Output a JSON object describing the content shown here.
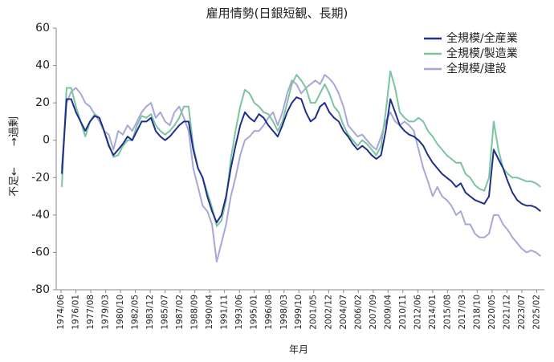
{
  "chart_data": {
    "type": "line",
    "title": "雇用情勢(日銀短観、長期)",
    "x_label": "年月",
    "y_label": "不足←　　→過剰",
    "xlim": [
      1973.9,
      2025.9
    ],
    "xticks": [
      {
        "value": 1974.42,
        "label": "1974/06"
      },
      {
        "value": 1976.0,
        "label": "1976/01"
      },
      {
        "value": 1977.58,
        "label": "1977/08"
      },
      {
        "value": 1979.17,
        "label": "1979/03"
      },
      {
        "value": 1980.75,
        "label": "1980/10"
      },
      {
        "value": 1982.33,
        "label": "1982/05"
      },
      {
        "value": 1983.92,
        "label": "1983/12"
      },
      {
        "value": 1985.5,
        "label": "1985/07"
      },
      {
        "value": 1987.08,
        "label": "1987/02"
      },
      {
        "value": 1988.67,
        "label": "1988/09"
      },
      {
        "value": 1990.25,
        "label": "1990/04"
      },
      {
        "value": 1991.83,
        "label": "1991/11"
      },
      {
        "value": 1993.42,
        "label": "1993/06"
      },
      {
        "value": 1995.0,
        "label": "1995/01"
      },
      {
        "value": 1996.58,
        "label": "1996/08"
      },
      {
        "value": 1998.17,
        "label": "1998/03"
      },
      {
        "value": 1999.75,
        "label": "1999/10"
      },
      {
        "value": 2001.33,
        "label": "2001/05"
      },
      {
        "value": 2002.92,
        "label": "2002/12"
      },
      {
        "value": 2004.5,
        "label": "2004/07"
      },
      {
        "value": 2006.08,
        "label": "2006/02"
      },
      {
        "value": 2007.67,
        "label": "2007/09"
      },
      {
        "value": 2009.25,
        "label": "2009/04"
      },
      {
        "value": 2010.83,
        "label": "2010/11"
      },
      {
        "value": 2012.42,
        "label": "2012/06"
      },
      {
        "value": 2014.0,
        "label": "2014/01"
      },
      {
        "value": 2015.58,
        "label": "2015/08"
      },
      {
        "value": 2017.17,
        "label": "2017/03"
      },
      {
        "value": 2018.75,
        "label": "2018/10"
      },
      {
        "value": 2020.33,
        "label": "2020/05"
      },
      {
        "value": 2021.92,
        "label": "2021/12"
      },
      {
        "value": 2023.5,
        "label": "2023/07"
      },
      {
        "value": 2025.08,
        "label": "2025/02"
      }
    ],
    "ylim": [
      -80,
      60
    ],
    "yticks": [
      -80,
      -60,
      -40,
      -20,
      0,
      20,
      40,
      60
    ],
    "legend": "top-right",
    "x": [
      1974.5,
      1975,
      1975.5,
      1976,
      1976.5,
      1977,
      1977.5,
      1978,
      1978.5,
      1979,
      1979.5,
      1980,
      1980.5,
      1981,
      1981.5,
      1982,
      1982.5,
      1983,
      1983.5,
      1984,
      1984.5,
      1985,
      1985.5,
      1986,
      1986.5,
      1987,
      1987.5,
      1988,
      1988.5,
      1989,
      1989.5,
      1990,
      1990.5,
      1991,
      1991.5,
      1992,
      1992.5,
      1993,
      1993.5,
      1994,
      1994.5,
      1995,
      1995.5,
      1996,
      1996.5,
      1997,
      1997.5,
      1998,
      1998.5,
      1999,
      1999.5,
      2000,
      2000.5,
      2001,
      2001.5,
      2002,
      2002.5,
      2003,
      2003.5,
      2004,
      2004.5,
      2005,
      2005.5,
      2006,
      2006.5,
      2007,
      2007.5,
      2008,
      2008.5,
      2009,
      2009.5,
      2010,
      2010.5,
      2011,
      2011.5,
      2012,
      2012.5,
      2013,
      2013.5,
      2014,
      2014.5,
      2015,
      2015.5,
      2016,
      2016.5,
      2017,
      2017.5,
      2018,
      2018.5,
      2019,
      2019.5,
      2020,
      2020.5,
      2021,
      2021.5,
      2022,
      2022.5,
      2023,
      2023.5,
      2024,
      2024.5,
      2025,
      2025.5
    ],
    "series": [
      {
        "name": "全規模/全産業",
        "color": "#1f2f8a",
        "values": [
          -18,
          22,
          22,
          15,
          10,
          5,
          10,
          13,
          12,
          5,
          -3,
          -8,
          -5,
          -2,
          2,
          0,
          5,
          10,
          10,
          12,
          5,
          2,
          0,
          2,
          5,
          8,
          10,
          10,
          -5,
          -15,
          -20,
          -30,
          -38,
          -44,
          -40,
          -30,
          -15,
          -3,
          8,
          15,
          12,
          10,
          14,
          12,
          8,
          5,
          2,
          8,
          15,
          20,
          23,
          22,
          15,
          10,
          12,
          18,
          20,
          15,
          12,
          10,
          5,
          2,
          -2,
          -5,
          -3,
          -5,
          -8,
          -10,
          -8,
          5,
          22,
          15,
          8,
          5,
          3,
          2,
          0,
          -3,
          -8,
          -12,
          -15,
          -18,
          -20,
          -22,
          -25,
          -23,
          -28,
          -30,
          -32,
          -33,
          -34,
          -30,
          -5,
          -10,
          -15,
          -22,
          -28,
          -32,
          -34,
          -35,
          -35,
          -36,
          -38
        ]
      },
      {
        "name": "全規模/製造業",
        "color": "#7cc4a0",
        "values": [
          -25,
          28,
          28,
          18,
          10,
          2,
          10,
          14,
          12,
          5,
          -2,
          -9,
          -8,
          -3,
          0,
          0,
          8,
          13,
          12,
          14,
          8,
          5,
          3,
          5,
          8,
          12,
          18,
          18,
          -3,
          -15,
          -20,
          -28,
          -36,
          -46,
          -43,
          -32,
          -10,
          5,
          18,
          27,
          25,
          20,
          18,
          15,
          14,
          10,
          5,
          10,
          20,
          30,
          35,
          32,
          28,
          20,
          20,
          25,
          30,
          25,
          18,
          15,
          8,
          3,
          0,
          -3,
          0,
          -2,
          -5,
          -8,
          -3,
          15,
          37,
          28,
          15,
          12,
          10,
          10,
          12,
          10,
          5,
          2,
          -2,
          -5,
          -8,
          -10,
          -12,
          -12,
          -18,
          -20,
          -24,
          -26,
          -27,
          -20,
          10,
          -5,
          -15,
          -18,
          -20,
          -20,
          -21,
          -22,
          -22,
          -23,
          -25
        ]
      },
      {
        "name": "全規模/建設",
        "color": "#a6a8d6",
        "values": [
          -15,
          20,
          26,
          28,
          25,
          20,
          18,
          14,
          10,
          5,
          3,
          -5,
          5,
          3,
          8,
          5,
          10,
          15,
          18,
          20,
          12,
          15,
          10,
          8,
          15,
          18,
          12,
          5,
          -15,
          -25,
          -35,
          -38,
          -45,
          -65,
          -55,
          -45,
          -30,
          -20,
          -8,
          0,
          2,
          5,
          5,
          8,
          12,
          15,
          8,
          15,
          25,
          32,
          30,
          25,
          28,
          30,
          32,
          30,
          35,
          33,
          30,
          25,
          18,
          8,
          5,
          2,
          3,
          0,
          -3,
          -5,
          2,
          10,
          15,
          10,
          8,
          10,
          8,
          5,
          -5,
          -15,
          -22,
          -30,
          -25,
          -30,
          -32,
          -35,
          -40,
          -38,
          -45,
          -45,
          -50,
          -52,
          -52,
          -50,
          -40,
          -40,
          -45,
          -48,
          -52,
          -55,
          -58,
          -60,
          -59,
          -60,
          -62
        ]
      }
    ]
  }
}
